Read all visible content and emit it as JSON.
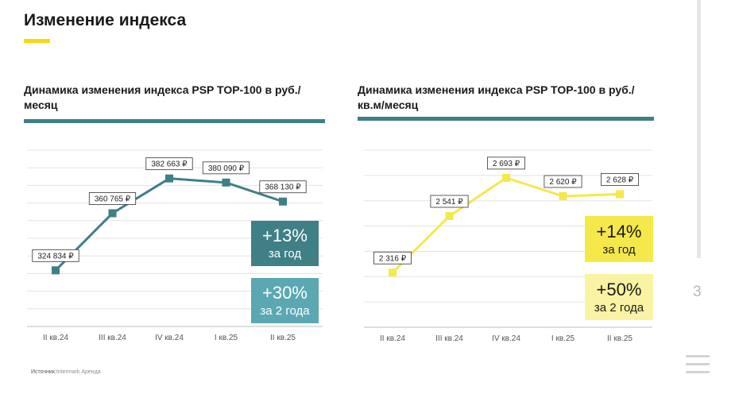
{
  "page_title": "Изменение индекса",
  "page_number": "3",
  "source": {
    "label": "Источник:",
    "value": "Intermark Аренда"
  },
  "colors": {
    "teal": "#3f7f86",
    "teal_light": "#5ba8b2",
    "yellow": "#f5e84a",
    "yellow_light": "#faf3a3",
    "accent": "#f5d90a"
  },
  "chart_data": [
    {
      "type": "line",
      "title": "Динамика изменения индекса PSP TOP-100 в руб./месяц",
      "categories": [
        "II кв.24",
        "III кв.24",
        "IV кв.24",
        "I кв.25",
        "II кв.25"
      ],
      "values": [
        324834,
        360765,
        382663,
        380090,
        368130
      ],
      "labels": [
        "324 834 ₽",
        "360 765 ₽",
        "382 663 ₽",
        "380 090 ₽",
        "368 130 ₽"
      ],
      "ylim": [
        305000,
        400000
      ],
      "color": "#3f7f86",
      "badges": [
        {
          "value": "+13%",
          "period": "за год"
        },
        {
          "value": "+30%",
          "period": "за 2 года"
        }
      ]
    },
    {
      "type": "line",
      "title": "Динамика изменения индекса PSP TOP-100 в руб./кв.м/месяц",
      "categories": [
        "II кв.24",
        "III кв.24",
        "IV кв.24",
        "I кв.25",
        "II кв.25"
      ],
      "values": [
        2316,
        2541,
        2693,
        2620,
        2628
      ],
      "labels": [
        "2 316 ₽",
        "2 541 ₽",
        "2 693 ₽",
        "2 620 ₽",
        "2 628 ₽"
      ],
      "ylim": [
        2200,
        2800
      ],
      "color": "#f5e84a",
      "badges": [
        {
          "value": "+14%",
          "period": "за год"
        },
        {
          "value": "+50%",
          "period": "за 2 года"
        }
      ]
    }
  ]
}
